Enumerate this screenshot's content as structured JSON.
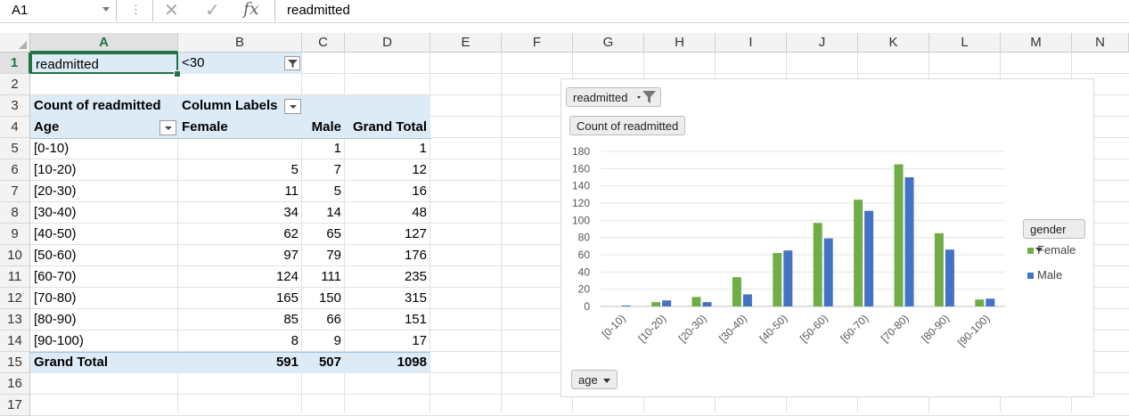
{
  "formula_bar": {
    "name_box": "A1",
    "fx_symbol": "fx",
    "formula": "readmitted"
  },
  "columns": [
    "A",
    "B",
    "C",
    "D",
    "E",
    "F",
    "G",
    "H",
    "I",
    "J",
    "K",
    "L",
    "M",
    "N"
  ],
  "rows": [
    "1",
    "2",
    "3",
    "4",
    "5",
    "6",
    "7",
    "8",
    "9",
    "10",
    "11",
    "12",
    "13",
    "14",
    "15",
    "16",
    "17"
  ],
  "filter": {
    "field": "readmitted",
    "value": "<30"
  },
  "pivot": {
    "value_header": "Count of readmitted",
    "col_labels": "Column Labels",
    "row_header": "Age",
    "col_female": "Female",
    "col_male": "Male",
    "col_total": "Grand Total",
    "data": [
      {
        "age": "[0-10)",
        "female": "",
        "male": "1",
        "total": "1"
      },
      {
        "age": "[10-20)",
        "female": "5",
        "male": "7",
        "total": "12"
      },
      {
        "age": "[20-30)",
        "female": "11",
        "male": "5",
        "total": "16"
      },
      {
        "age": "[30-40)",
        "female": "34",
        "male": "14",
        "total": "48"
      },
      {
        "age": "[40-50)",
        "female": "62",
        "male": "65",
        "total": "127"
      },
      {
        "age": "[50-60)",
        "female": "97",
        "male": "79",
        "total": "176"
      },
      {
        "age": "[60-70)",
        "female": "124",
        "male": "111",
        "total": "235"
      },
      {
        "age": "[70-80)",
        "female": "165",
        "male": "150",
        "total": "315"
      },
      {
        "age": "[80-90)",
        "female": "85",
        "male": "66",
        "total": "151"
      },
      {
        "age": "[90-100)",
        "female": "8",
        "male": "9",
        "total": "17"
      }
    ],
    "grand_total_label": "Grand Total",
    "grand_female": "591",
    "grand_male": "507",
    "grand_total": "1098"
  },
  "chart_ui": {
    "filter_field": "readmitted",
    "value_field": "Count of readmitted",
    "legend_field": "gender",
    "axis_field": "age"
  },
  "colors": {
    "female": "#70ad47",
    "male": "#4472c4",
    "pivot_fill": "#ddebf7",
    "selection": "#217346"
  },
  "chart_data": {
    "type": "bar",
    "categories": [
      "[0-10)",
      "[10-20)",
      "[20-30)",
      "[30-40)",
      "[40-50)",
      "[50-60)",
      "[60-70)",
      "[70-80)",
      "[80-90)",
      "[90-100)"
    ],
    "series": [
      {
        "name": "Female",
        "values": [
          0,
          5,
          11,
          34,
          62,
          97,
          124,
          165,
          85,
          8
        ]
      },
      {
        "name": "Male",
        "values": [
          1,
          7,
          5,
          14,
          65,
          79,
          111,
          150,
          66,
          9
        ]
      }
    ],
    "yticks": [
      0,
      20,
      40,
      60,
      80,
      100,
      120,
      140,
      160,
      180
    ],
    "ylim": [
      0,
      180
    ],
    "grid": true,
    "legend": "right"
  }
}
